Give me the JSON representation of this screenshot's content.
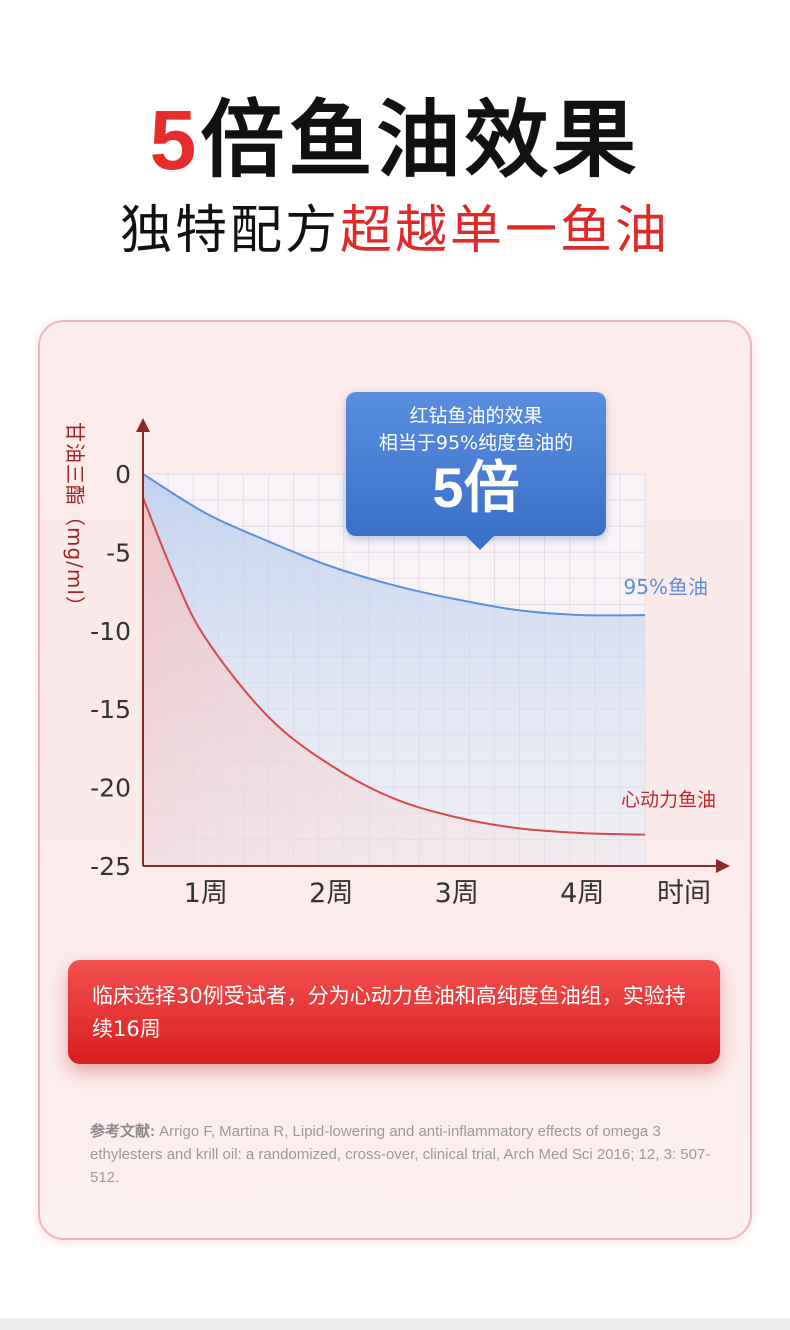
{
  "headline": {
    "accent": "5",
    "rest": "倍鱼油效果"
  },
  "subheadline": {
    "normal": "独特配方",
    "accent": "超越单一鱼油"
  },
  "callout": {
    "line1": "红钻鱼油的效果",
    "line2": "相当于95%纯度鱼油的",
    "big": "5倍"
  },
  "note": {
    "text": "临床选择30例受试者，分为心动力鱼油和高纯度鱼油组，实验持续16周"
  },
  "reference": {
    "lead": "参考文献:",
    "text": "Arrigo F, Martina R, Lipid-lowering and anti-inflammatory effects of omega 3 ethylesters and krill oil: a randomized, cross-over, clinical trial, Arch Med Sci 2016; 12, 3: 507-512."
  },
  "colors": {
    "accent": "#e52d2d",
    "blue_series": "#5b8fd6",
    "red_series": "#d94848",
    "callout_bg": "#3f78cc"
  },
  "chart_data": {
    "type": "line",
    "title": "",
    "xlabel": "时间",
    "ylabel": "甘油三酯（mg/ml）",
    "x_ticks": [
      "1周",
      "2周",
      "3周",
      "4周"
    ],
    "y_ticks": [
      "0",
      "-5",
      "-10",
      "-15",
      "-20",
      "-25"
    ],
    "ylim": [
      -25,
      0
    ],
    "grid": true,
    "series": [
      {
        "name": "95%鱼油",
        "color": "#5b8fd6",
        "x": [
          0,
          0.5,
          1,
          1.5,
          2,
          2.5,
          3,
          3.5,
          4
        ],
        "y": [
          0,
          -2.5,
          -4.3,
          -5.9,
          -7.1,
          -8.0,
          -8.7,
          -9.0,
          -9.0
        ]
      },
      {
        "name": "心动力鱼油",
        "color": "#d94848",
        "x": [
          0,
          0.25,
          0.5,
          1,
          1.5,
          2,
          2.5,
          3,
          3.5,
          4
        ],
        "y": [
          -1.5,
          -6.5,
          -10.5,
          -15.5,
          -18.6,
          -20.7,
          -21.9,
          -22.6,
          -22.9,
          -23.0
        ]
      }
    ]
  }
}
